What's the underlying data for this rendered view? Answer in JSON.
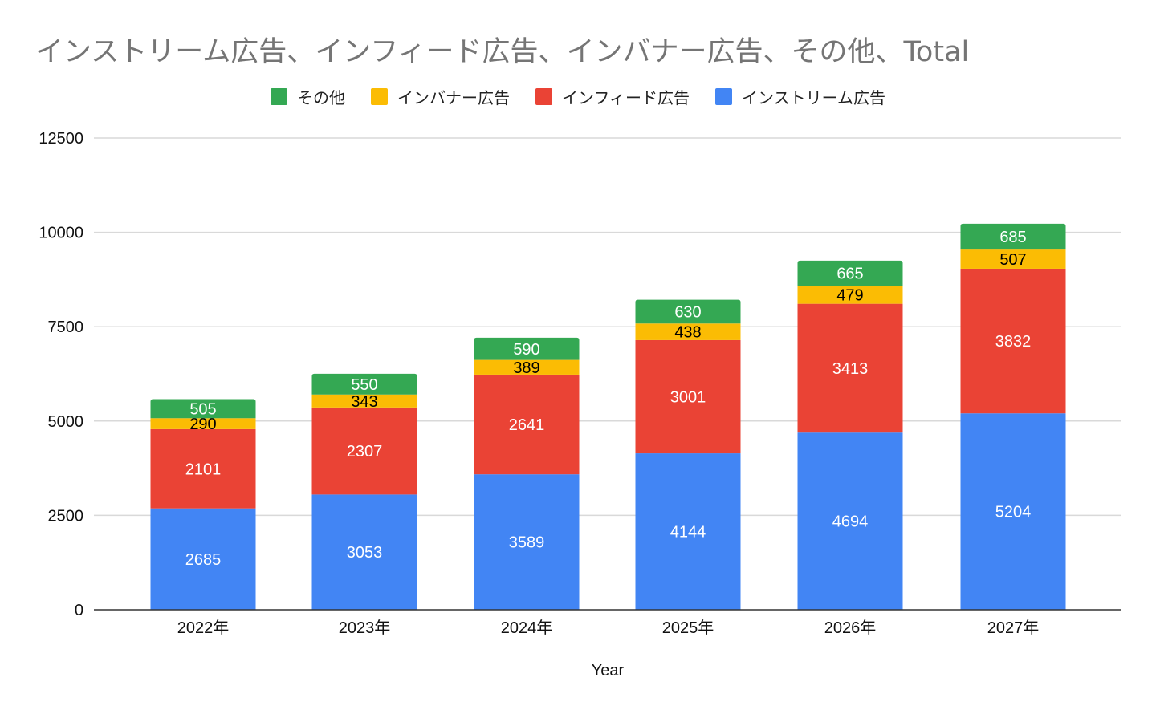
{
  "chart_data": {
    "type": "bar",
    "stacked": true,
    "title": "インストリーム広告、インフィード広告、インバナー広告、その他、Total",
    "xlabel": "Year",
    "ylabel": "",
    "categories": [
      "2022年",
      "2023年",
      "2024年",
      "2025年",
      "2026年",
      "2027年"
    ],
    "ylim": [
      0,
      12500
    ],
    "yticks": [
      0,
      2500,
      5000,
      7500,
      10000,
      12500
    ],
    "grid": true,
    "legend_position": "top",
    "legend_order": [
      "その他",
      "インバナー広告",
      "インフィード広告",
      "インストリーム広告"
    ],
    "series": [
      {
        "name": "インストリーム広告",
        "color": "#4285f4",
        "label_color": "#ffffff",
        "values": [
          2685,
          3053,
          3589,
          4144,
          4694,
          5204
        ]
      },
      {
        "name": "インフィード広告",
        "color": "#ea4335",
        "label_color": "#ffffff",
        "values": [
          2101,
          2307,
          2641,
          3001,
          3413,
          3832
        ]
      },
      {
        "name": "インバナー広告",
        "color": "#fbbc04",
        "label_color": "#000000",
        "values": [
          290,
          343,
          389,
          438,
          479,
          507
        ]
      },
      {
        "name": "その他",
        "color": "#34a853",
        "label_color": "#ffffff",
        "values": [
          505,
          550,
          590,
          630,
          665,
          685
        ]
      }
    ]
  }
}
